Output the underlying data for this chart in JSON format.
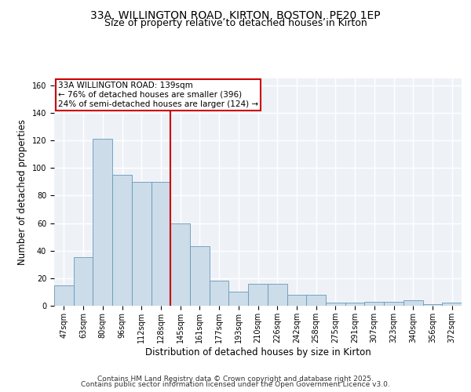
{
  "title_line1": "33A, WILLINGTON ROAD, KIRTON, BOSTON, PE20 1EP",
  "title_line2": "Size of property relative to detached houses in Kirton",
  "xlabel": "Distribution of detached houses by size in Kirton",
  "ylabel": "Number of detached properties",
  "categories": [
    "47sqm",
    "63sqm",
    "80sqm",
    "96sqm",
    "112sqm",
    "128sqm",
    "145sqm",
    "161sqm",
    "177sqm",
    "193sqm",
    "210sqm",
    "226sqm",
    "242sqm",
    "258sqm",
    "275sqm",
    "291sqm",
    "307sqm",
    "323sqm",
    "340sqm",
    "356sqm",
    "372sqm"
  ],
  "values": [
    15,
    35,
    121,
    95,
    90,
    90,
    60,
    43,
    18,
    10,
    16,
    16,
    8,
    8,
    2,
    2,
    3,
    3,
    4,
    1,
    2
  ],
  "bar_color": "#ccdce8",
  "bar_edge_color": "#6699bb",
  "background_color": "#eef2f7",
  "grid_color": "#ffffff",
  "annotation_text": "33A WILLINGTON ROAD: 139sqm\n← 76% of detached houses are smaller (396)\n24% of semi-detached houses are larger (124) →",
  "annotation_box_color": "#ffffff",
  "annotation_box_edge_color": "#cc0000",
  "vline_x": 6.0,
  "vline_color": "#cc0000",
  "ylim": [
    0,
    165
  ],
  "yticks": [
    0,
    20,
    40,
    60,
    80,
    100,
    120,
    140,
    160
  ],
  "footnote_line1": "Contains HM Land Registry data © Crown copyright and database right 2025.",
  "footnote_line2": "Contains public sector information licensed under the Open Government Licence v3.0.",
  "title_fontsize": 10,
  "subtitle_fontsize": 9,
  "axis_label_fontsize": 8.5,
  "tick_fontsize": 7,
  "annotation_fontsize": 7.5,
  "footnote_fontsize": 6.5
}
